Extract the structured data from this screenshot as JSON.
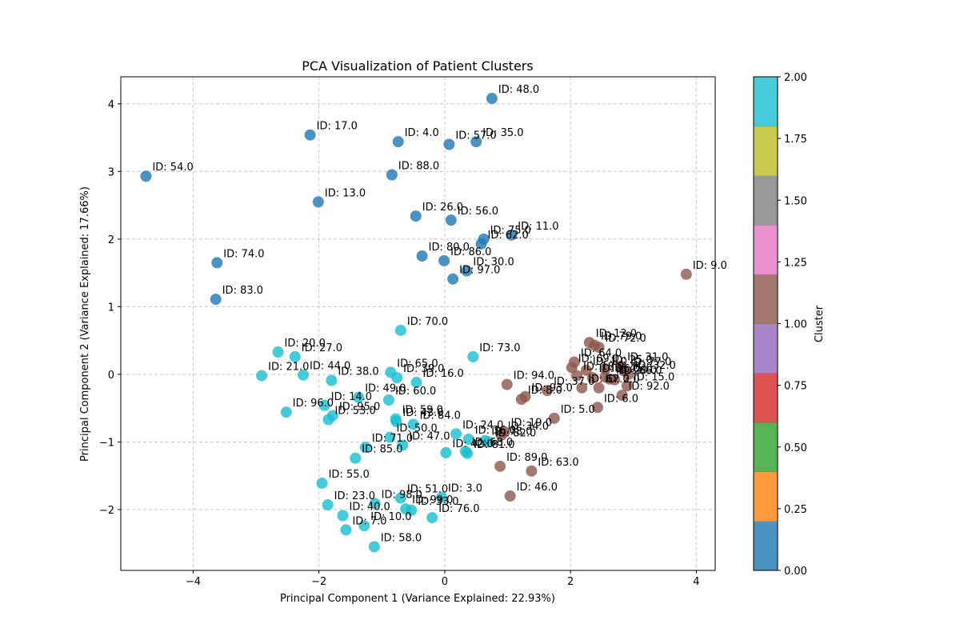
{
  "chart_data": {
    "type": "scatter",
    "title": "PCA Visualization of Patient Clusters",
    "xlabel": "Principal Component 1 (Variance Explained: 22.93%)",
    "ylabel": "Principal Component 2 (Variance Explained: 17.66%)",
    "xlim": [
      -5.15,
      4.3
    ],
    "ylim": [
      -2.9,
      4.4
    ],
    "xticks": [
      -4,
      -2,
      0,
      2,
      4
    ],
    "yticks": [
      -2,
      -1,
      0,
      1,
      2,
      3,
      4
    ],
    "grid": true,
    "colorbar": {
      "label": "Cluster",
      "range": [
        0,
        2
      ],
      "ticks": [
        "0.00",
        "0.25",
        "0.50",
        "0.75",
        "1.00",
        "1.25",
        "1.50",
        "1.75",
        "2.00"
      ],
      "colors": [
        "#1f77b4",
        "#ff7f0e",
        "#2ca02c",
        "#d62728",
        "#9467bd",
        "#8c564b",
        "#e377c2",
        "#7f7f7f",
        "#bcbd22",
        "#17becf"
      ]
    },
    "cluster_colors": {
      "0": "#1f77b4",
      "1": "#8c564b",
      "2": "#17becf"
    },
    "points": [
      {
        "label": "ID: 48.0",
        "x": 0.75,
        "y": 4.08,
        "cluster": 0
      },
      {
        "label": "ID: 17.0",
        "x": -2.14,
        "y": 3.54,
        "cluster": 0
      },
      {
        "label": "ID: 4.0",
        "x": -0.74,
        "y": 3.44,
        "cluster": 0
      },
      {
        "label": "ID: 57.0",
        "x": 0.07,
        "y": 3.4,
        "cluster": 0
      },
      {
        "label": "ID: 35.0",
        "x": 0.5,
        "y": 3.44,
        "cluster": 0
      },
      {
        "label": "ID: 54.0",
        "x": -4.75,
        "y": 2.93,
        "cluster": 0
      },
      {
        "label": "ID: 88.0",
        "x": -0.84,
        "y": 2.95,
        "cluster": 0
      },
      {
        "label": "ID: 13.0",
        "x": -2.01,
        "y": 2.55,
        "cluster": 0
      },
      {
        "label": "ID: 26.0",
        "x": -0.46,
        "y": 2.34,
        "cluster": 0
      },
      {
        "label": "ID: 56.0",
        "x": 0.1,
        "y": 2.28,
        "cluster": 0
      },
      {
        "label": "ID: 11.0",
        "x": 1.06,
        "y": 2.06,
        "cluster": 0
      },
      {
        "label": "ID: 75.0",
        "x": 0.62,
        "y": 2.0,
        "cluster": 0
      },
      {
        "label": "ID: 62.0",
        "x": 0.58,
        "y": 1.93,
        "cluster": 0
      },
      {
        "label": "ID: 74.0",
        "x": -3.62,
        "y": 1.65,
        "cluster": 0
      },
      {
        "label": "ID: 80.0",
        "x": -0.36,
        "y": 1.75,
        "cluster": 0
      },
      {
        "label": "ID: 86.0",
        "x": -0.01,
        "y": 1.68,
        "cluster": 0
      },
      {
        "label": "ID: 30.0",
        "x": 0.35,
        "y": 1.53,
        "cluster": 0
      },
      {
        "label": "ID: 97.0",
        "x": 0.13,
        "y": 1.41,
        "cluster": 0
      },
      {
        "label": "ID: 83.0",
        "x": -3.64,
        "y": 1.11,
        "cluster": 0
      },
      {
        "label": "ID: 9.0",
        "x": 3.84,
        "y": 1.48,
        "cluster": 1
      },
      {
        "label": "ID: 12.0",
        "x": 2.3,
        "y": 0.47,
        "cluster": 1
      },
      {
        "label": "ID: 79.0",
        "x": 2.38,
        "y": 0.43,
        "cluster": 1
      },
      {
        "label": "ID: 72.0",
        "x": 2.45,
        "y": 0.4,
        "cluster": 1
      },
      {
        "label": "ID: 64.0",
        "x": 2.06,
        "y": 0.18,
        "cluster": 1
      },
      {
        "label": "ID: 31.0",
        "x": 2.8,
        "y": 0.12,
        "cluster": 1
      },
      {
        "label": "ID: 69.0",
        "x": 2.02,
        "y": 0.1,
        "cluster": 1
      },
      {
        "label": "ID: 1.0",
        "x": 2.25,
        "y": 0.06,
        "cluster": 1
      },
      {
        "label": "ID: 25.0",
        "x": 2.55,
        "y": 0.08,
        "cluster": 1
      },
      {
        "label": "ID: 77.0",
        "x": 2.85,
        "y": 0.05,
        "cluster": 1
      },
      {
        "label": "ID: 32.0",
        "x": 2.92,
        "y": 0.0,
        "cluster": 1
      },
      {
        "label": "ID: 18.0",
        "x": 2.1,
        "y": -0.02,
        "cluster": 1
      },
      {
        "label": "ID: 94.0",
        "x": 0.99,
        "y": -0.15,
        "cluster": 1
      },
      {
        "label": "ID: 16.0",
        "x": 2.35,
        "y": -0.05,
        "cluster": 1
      },
      {
        "label": "ID: 45.0",
        "x": 2.55,
        "y": -0.04,
        "cluster": 1
      },
      {
        "label": "ID: 28.0",
        "x": 2.62,
        "y": -0.07,
        "cluster": 1
      },
      {
        "label": "ID: 66.0",
        "x": 2.7,
        "y": -0.08,
        "cluster": 1
      },
      {
        "label": "ID: 67.0",
        "x": 2.18,
        "y": -0.2,
        "cluster": 1
      },
      {
        "label": "ID: 15.0",
        "x": 2.9,
        "y": -0.17,
        "cluster": 1
      },
      {
        "label": "ID: 37.0",
        "x": 1.63,
        "y": -0.24,
        "cluster": 1
      },
      {
        "label": "ID: 93.0",
        "x": 1.28,
        "y": -0.33,
        "cluster": 1
      },
      {
        "label": "ID: 8.0",
        "x": 1.22,
        "y": -0.37,
        "cluster": 1
      },
      {
        "label": "ID: 2.0",
        "x": 2.45,
        "y": -0.2,
        "cluster": 1
      },
      {
        "label": "ID: 92.0",
        "x": 2.82,
        "y": -0.31,
        "cluster": 1
      },
      {
        "label": "ID: 5.0",
        "x": 1.74,
        "y": -0.65,
        "cluster": 1
      },
      {
        "label": "ID: 6.0",
        "x": 2.43,
        "y": -0.49,
        "cluster": 1
      },
      {
        "label": "ID: 19.0",
        "x": 0.95,
        "y": -0.85,
        "cluster": 1
      },
      {
        "label": "ID: 34.0",
        "x": 0.9,
        "y": -0.9,
        "cluster": 1
      },
      {
        "label": "ID: 89.0",
        "x": 0.88,
        "y": -1.36,
        "cluster": 1
      },
      {
        "label": "ID: 63.0",
        "x": 1.38,
        "y": -1.43,
        "cluster": 1
      },
      {
        "label": "ID: 46.0",
        "x": 1.04,
        "y": -1.8,
        "cluster": 1
      },
      {
        "label": "ID: 70.0",
        "x": -0.7,
        "y": 0.65,
        "cluster": 2
      },
      {
        "label": "ID: 73.0",
        "x": 0.45,
        "y": 0.26,
        "cluster": 2
      },
      {
        "label": "ID: 20.0",
        "x": -2.65,
        "y": 0.33,
        "cluster": 2
      },
      {
        "label": "ID: 27.0",
        "x": -2.38,
        "y": 0.26,
        "cluster": 2
      },
      {
        "label": "ID: 21.0",
        "x": -2.91,
        "y": -0.02,
        "cluster": 2
      },
      {
        "label": "ID: 44.0",
        "x": -2.25,
        "y": -0.01,
        "cluster": 2
      },
      {
        "label": "ID: 38.0",
        "x": -1.8,
        "y": -0.09,
        "cluster": 2
      },
      {
        "label": "ID: 65.0",
        "x": -0.86,
        "y": 0.03,
        "cluster": 2
      },
      {
        "label": "ID: 39.0",
        "x": -0.76,
        "y": -0.05,
        "cluster": 2
      },
      {
        "label": "ID: 16.0",
        "x": -0.45,
        "y": -0.12,
        "cluster": 2
      },
      {
        "label": "ID: 49.0",
        "x": -1.37,
        "y": -0.34,
        "cluster": 2
      },
      {
        "label": "ID: 60.0",
        "x": -0.89,
        "y": -0.38,
        "cluster": 2
      },
      {
        "label": "ID: 14.0",
        "x": -1.91,
        "y": -0.46,
        "cluster": 2
      },
      {
        "label": "ID: 96.0",
        "x": -2.52,
        "y": -0.56,
        "cluster": 2
      },
      {
        "label": "ID: 95.0",
        "x": -1.78,
        "y": -0.61,
        "cluster": 2
      },
      {
        "label": "ID: 53.0",
        "x": -1.85,
        "y": -0.67,
        "cluster": 2
      },
      {
        "label": "ID: 59.0",
        "x": -0.78,
        "y": -0.66,
        "cluster": 2
      },
      {
        "label": "ID: 43.0",
        "x": -0.77,
        "y": -0.7,
        "cluster": 2
      },
      {
        "label": "ID: 84.0",
        "x": -0.5,
        "y": -0.74,
        "cluster": 2
      },
      {
        "label": "ID: 24.0",
        "x": 0.18,
        "y": -0.88,
        "cluster": 2
      },
      {
        "label": "ID: 50.0",
        "x": -0.87,
        "y": -0.93,
        "cluster": 2
      },
      {
        "label": "ID: 71.0",
        "x": -1.26,
        "y": -1.08,
        "cluster": 2
      },
      {
        "label": "ID: 47.0",
        "x": -0.67,
        "y": -1.05,
        "cluster": 2
      },
      {
        "label": "ID: 36.0",
        "x": 0.38,
        "y": -0.96,
        "cluster": 2
      },
      {
        "label": "ID: 78.0",
        "x": 0.64,
        "y": -0.98,
        "cluster": 2
      },
      {
        "label": "ID: 82.0",
        "x": 0.7,
        "y": -1.0,
        "cluster": 2
      },
      {
        "label": "ID: 68.0",
        "x": 0.33,
        "y": -1.14,
        "cluster": 2
      },
      {
        "label": "ID: 81.0",
        "x": 0.36,
        "y": -1.17,
        "cluster": 2
      },
      {
        "label": "ID: 42.0",
        "x": 0.02,
        "y": -1.16,
        "cluster": 2
      },
      {
        "label": "ID: 85.0",
        "x": -1.42,
        "y": -1.24,
        "cluster": 2
      },
      {
        "label": "ID: 55.0",
        "x": -1.95,
        "y": -1.61,
        "cluster": 2
      },
      {
        "label": "ID: 51.0",
        "x": -0.7,
        "y": -1.83,
        "cluster": 2
      },
      {
        "label": "ID: 3.0",
        "x": -0.05,
        "y": -1.82,
        "cluster": 2
      },
      {
        "label": "ID: 23.0",
        "x": -1.86,
        "y": -1.93,
        "cluster": 2
      },
      {
        "label": "ID: 98.0",
        "x": -1.11,
        "y": -1.91,
        "cluster": 2
      },
      {
        "label": "ID: 99.0",
        "x": -0.62,
        "y": -1.99,
        "cluster": 2
      },
      {
        "label": "ID: 33.0",
        "x": -0.53,
        "y": -2.01,
        "cluster": 2
      },
      {
        "label": "ID: 76.0",
        "x": -0.2,
        "y": -2.12,
        "cluster": 2
      },
      {
        "label": "ID: 40.0",
        "x": -1.62,
        "y": -2.09,
        "cluster": 2
      },
      {
        "label": "ID: 10.0",
        "x": -1.28,
        "y": -2.24,
        "cluster": 2
      },
      {
        "label": "ID: 7.0",
        "x": -1.57,
        "y": -2.3,
        "cluster": 2
      },
      {
        "label": "ID: 58.0",
        "x": -1.12,
        "y": -2.55,
        "cluster": 2
      }
    ]
  }
}
